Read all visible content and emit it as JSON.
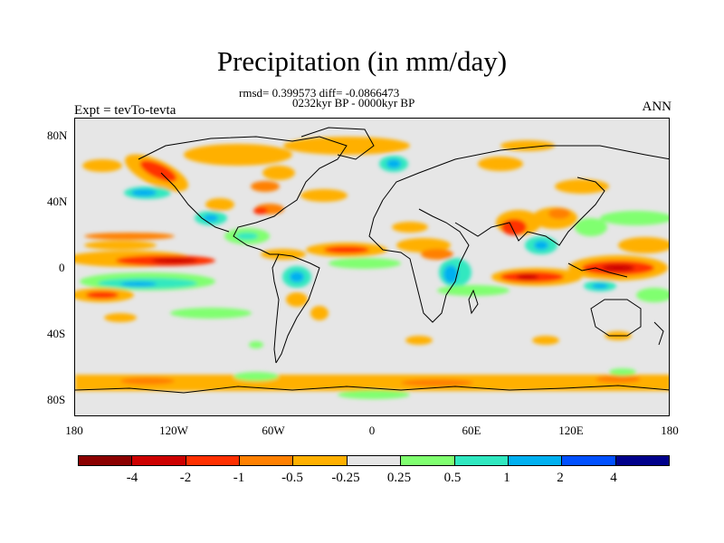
{
  "title": "Precipitation (in mm/day)",
  "stats": "rmsd= 0.399573 diff= -0.0866473",
  "period": "0232kyr BP - 0000kyr BP",
  "experiment": "Expt = tevTo-tevta",
  "season": "ANN",
  "y_axis": [
    "80N",
    "40N",
    "0",
    "40S",
    "80S"
  ],
  "x_axis": [
    "180",
    "120W",
    "60W",
    "0",
    "60E",
    "120E",
    "180"
  ],
  "colorbar": {
    "labels": [
      "-4",
      "-2",
      "-1",
      "-0.5",
      "-0.25",
      "0.25",
      "0.5",
      "1",
      "2",
      "4"
    ],
    "colors": [
      "#8b0000",
      "#cd0000",
      "#ff3000",
      "#ff8000",
      "#ffb000",
      "#e6e6e6",
      "#80ff70",
      "#30e8c0",
      "#00b0f0",
      "#0050ff",
      "#00008b"
    ]
  },
  "background_color": "#e6e6e6"
}
